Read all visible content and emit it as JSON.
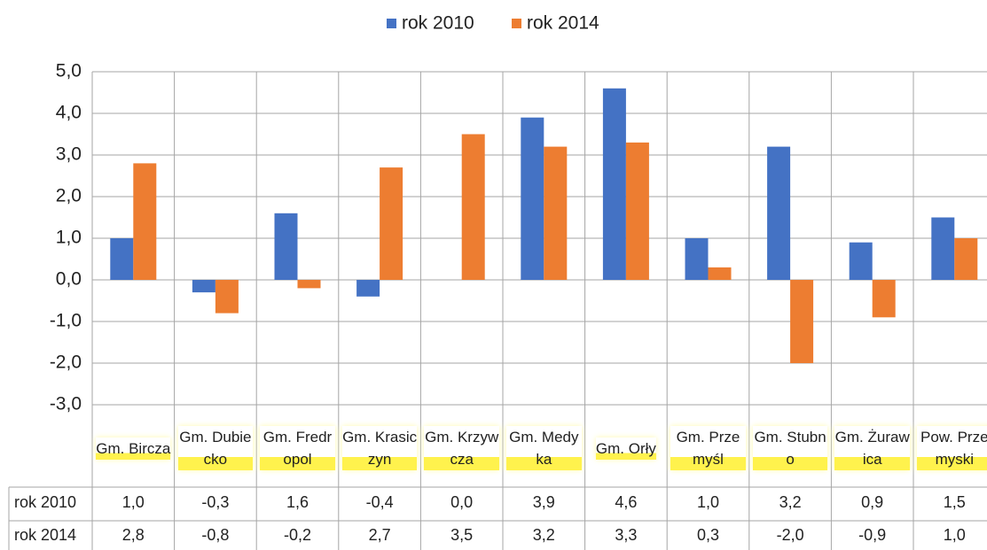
{
  "chart_data": {
    "type": "bar",
    "categories": [
      "Gm. Bircza",
      "Gm. Dubiecko",
      "Gm. Fredropol",
      "Gm. Krasiczyn",
      "Gm. Krzywcza",
      "Gm. Medyka",
      "Gm. Orły",
      "Gm. Przemyśl",
      "Gm. Stubno",
      "Gm. Żurawica",
      "Pow. Przemyski"
    ],
    "series": [
      {
        "name": "rok 2010",
        "color": "#4472c4",
        "values": [
          1.0,
          -0.3,
          1.6,
          -0.4,
          0.0,
          3.9,
          4.6,
          1.0,
          3.2,
          0.9,
          1.5
        ],
        "value_labels": [
          "1,0",
          "-0,3",
          "1,6",
          "-0,4",
          "0,0",
          "3,9",
          "4,6",
          "1,0",
          "3,2",
          "0,9",
          "1,5"
        ]
      },
      {
        "name": "rok 2014",
        "color": "#ed7d31",
        "values": [
          2.8,
          -0.8,
          -0.2,
          2.7,
          3.5,
          3.2,
          3.3,
          0.3,
          -2.0,
          -0.9,
          1.0
        ],
        "value_labels": [
          "2,8",
          "-0,8",
          "-0,2",
          "2,7",
          "3,5",
          "3,2",
          "3,3",
          "0,3",
          "-2,0",
          "-0,9",
          "1,0"
        ]
      }
    ],
    "ylim": [
      -3,
      5
    ],
    "yticks": [
      {
        "value": -3,
        "label": "-3,0"
      },
      {
        "value": -2,
        "label": "-2,0"
      },
      {
        "value": -1,
        "label": "-1,0"
      },
      {
        "value": 0,
        "label": "0,0"
      },
      {
        "value": 1,
        "label": "1,0"
      },
      {
        "value": 2,
        "label": "2,0"
      },
      {
        "value": 3,
        "label": "3,0"
      },
      {
        "value": 4,
        "label": "4,0"
      },
      {
        "value": 5,
        "label": "5,0"
      }
    ],
    "grid": true,
    "legend": "top"
  }
}
